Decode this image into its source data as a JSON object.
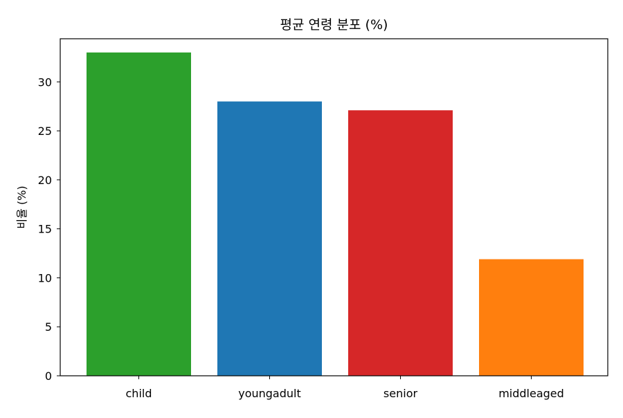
{
  "chart_data": {
    "type": "bar",
    "title": "평균 연령 분포 (%)",
    "xlabel": "",
    "ylabel": "비율 (%)",
    "categories": [
      "child",
      "youngadult",
      "senior",
      "middleaged"
    ],
    "values": [
      33.0,
      28.0,
      27.1,
      11.9
    ],
    "colors": [
      "#2ca02c",
      "#1f77b4",
      "#d62728",
      "#ff7f0e"
    ],
    "ylim": [
      0,
      34.4
    ],
    "yticks": [
      0,
      5,
      10,
      15,
      20,
      25,
      30
    ],
    "grid": false,
    "legend": "none"
  }
}
